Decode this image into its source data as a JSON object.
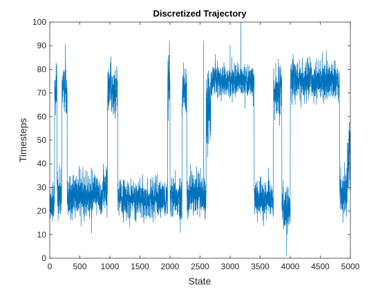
{
  "chart_data": {
    "type": "line",
    "title": "Discretized Trajectory",
    "xlabel": "State",
    "ylabel": "Timesteps",
    "xlim": [
      0,
      5000
    ],
    "ylim": [
      0,
      100
    ],
    "xticks": [
      0,
      500,
      1000,
      1500,
      2000,
      2500,
      3000,
      3500,
      4000,
      4500,
      5000
    ],
    "yticks": [
      0,
      10,
      20,
      30,
      40,
      50,
      60,
      70,
      80,
      90,
      100
    ],
    "grid": false,
    "legend": "none",
    "color": "#0072BD",
    "n_points": 5000,
    "segments": [
      {
        "x_start": 0,
        "x_end": 80,
        "mean": 24,
        "spread": 8
      },
      {
        "x_start": 80,
        "x_end": 120,
        "mean": 70,
        "spread": 10
      },
      {
        "x_start": 120,
        "x_end": 200,
        "mean": 28,
        "spread": 9
      },
      {
        "x_start": 200,
        "x_end": 290,
        "mean": 72,
        "spread": 9
      },
      {
        "x_start": 290,
        "x_end": 880,
        "mean": 26,
        "spread": 8
      },
      {
        "x_start": 880,
        "x_end": 960,
        "mean": 30,
        "spread": 9
      },
      {
        "x_start": 960,
        "x_end": 1130,
        "mean": 72,
        "spread": 9
      },
      {
        "x_start": 1130,
        "x_end": 1960,
        "mean": 25,
        "spread": 7
      },
      {
        "x_start": 1960,
        "x_end": 2000,
        "mean": 70,
        "spread": 12
      },
      {
        "x_start": 2000,
        "x_end": 2200,
        "mean": 25,
        "spread": 8
      },
      {
        "x_start": 2200,
        "x_end": 2280,
        "mean": 70,
        "spread": 10
      },
      {
        "x_start": 2280,
        "x_end": 2600,
        "mean": 27,
        "spread": 8
      },
      {
        "x_start": 2600,
        "x_end": 2680,
        "mean": 65,
        "spread": 14
      },
      {
        "x_start": 2680,
        "x_end": 3400,
        "mean": 75,
        "spread": 6
      },
      {
        "x_start": 3400,
        "x_end": 3720,
        "mean": 25,
        "spread": 7
      },
      {
        "x_start": 3720,
        "x_end": 3860,
        "mean": 70,
        "spread": 10
      },
      {
        "x_start": 3860,
        "x_end": 4000,
        "mean": 22,
        "spread": 8
      },
      {
        "x_start": 4000,
        "x_end": 4820,
        "mean": 75,
        "spread": 7
      },
      {
        "x_start": 4820,
        "x_end": 4950,
        "mean": 28,
        "spread": 9
      },
      {
        "x_start": 4950,
        "x_end": 5000,
        "mean": 45,
        "spread": 12
      }
    ],
    "notable_points": [
      {
        "x": 1990,
        "y": 92
      },
      {
        "x": 2560,
        "y": 92
      },
      {
        "x": 3180,
        "y": 100
      },
      {
        "x": 3940,
        "y": 1
      },
      {
        "x": 3000,
        "y": 90
      },
      {
        "x": 4600,
        "y": 88
      }
    ]
  }
}
